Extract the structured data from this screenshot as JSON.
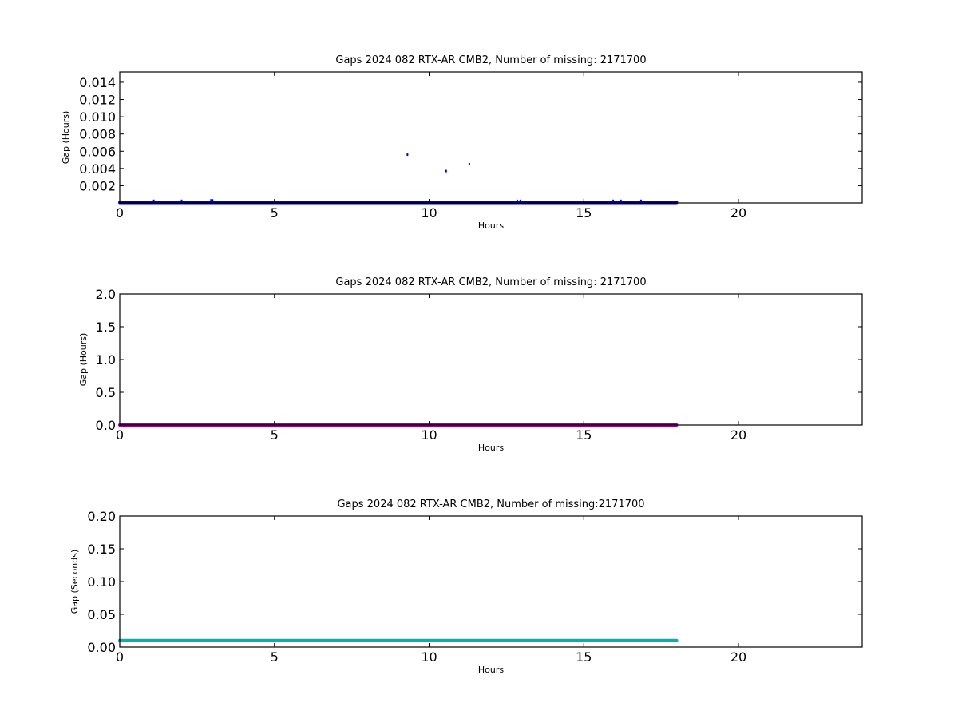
{
  "chart_data": [
    {
      "type": "scatter",
      "title": "Gaps 2024 082 RTX-AR  CMB2, Number of missing: 2171700",
      "xlabel": "Hours",
      "ylabel": "Gap (Hours)",
      "xlim": [
        0,
        24
      ],
      "ylim": [
        0,
        0.0152
      ],
      "x_ticks": [
        "0",
        "5",
        "10",
        "15",
        "20"
      ],
      "x_tick_values": [
        0,
        5,
        10,
        15,
        20
      ],
      "y_ticks": [
        "0.002",
        "0.004",
        "0.006",
        "0.008",
        "0.010",
        "0.012",
        "0.014"
      ],
      "y_tick_values": [
        0.002,
        0.004,
        0.006,
        0.008,
        0.01,
        0.012,
        0.014
      ],
      "grid": false,
      "color": "#0000cc",
      "series": [
        {
          "baseline": {
            "x_start": 0,
            "x_end": 18,
            "y": 5e-05
          },
          "points": [
            {
              "x": 1.1,
              "y": 0.00025
            },
            {
              "x": 2.0,
              "y": 0.00025
            },
            {
              "x": 2.95,
              "y": 0.0003
            },
            {
              "x": 3.0,
              "y": 0.0003
            },
            {
              "x": 9.3,
              "y": 0.0056
            },
            {
              "x": 10.55,
              "y": 0.0037
            },
            {
              "x": 11.3,
              "y": 0.0045
            },
            {
              "x": 12.85,
              "y": 0.00025
            },
            {
              "x": 12.95,
              "y": 0.00025
            },
            {
              "x": 15.95,
              "y": 0.00025
            },
            {
              "x": 16.2,
              "y": 0.00025
            },
            {
              "x": 16.85,
              "y": 0.00025
            }
          ]
        }
      ]
    },
    {
      "type": "scatter",
      "title": "Gaps 2024 082 RTX-AR  CMB2, Number of missing: 2171700",
      "xlabel": "Hours",
      "ylabel": "Gap (Hours)",
      "xlim": [
        0,
        24
      ],
      "ylim": [
        0,
        2.0
      ],
      "x_ticks": [
        "0",
        "5",
        "10",
        "15",
        "20"
      ],
      "x_tick_values": [
        0,
        5,
        10,
        15,
        20
      ],
      "y_ticks": [
        "0.0",
        "0.5",
        "1.0",
        "1.5",
        "2.0"
      ],
      "y_tick_values": [
        0.0,
        0.5,
        1.0,
        1.5,
        2.0
      ],
      "grid": false,
      "color": "#990099",
      "series": [
        {
          "baseline": {
            "x_start": 0,
            "x_end": 18,
            "y": 0.0
          },
          "points": []
        }
      ]
    },
    {
      "type": "scatter",
      "title": "Gaps 2024 082 RTX-AR  CMB2, Number of missing:2171700",
      "xlabel": "Hours",
      "ylabel": "Gap (Seconds)",
      "xlim": [
        0,
        24
      ],
      "ylim": [
        0,
        0.2
      ],
      "x_ticks": [
        "0",
        "5",
        "10",
        "15",
        "20"
      ],
      "x_tick_values": [
        0,
        5,
        10,
        15,
        20
      ],
      "y_ticks": [
        "0.00",
        "0.05",
        "0.10",
        "0.15",
        "0.20"
      ],
      "y_tick_values": [
        0.0,
        0.05,
        0.1,
        0.15,
        0.2
      ],
      "grid": false,
      "color": "#00b3b3",
      "series": [
        {
          "baseline": {
            "x_start": 0,
            "x_end": 18,
            "y": 0.01
          },
          "points": []
        }
      ]
    }
  ]
}
